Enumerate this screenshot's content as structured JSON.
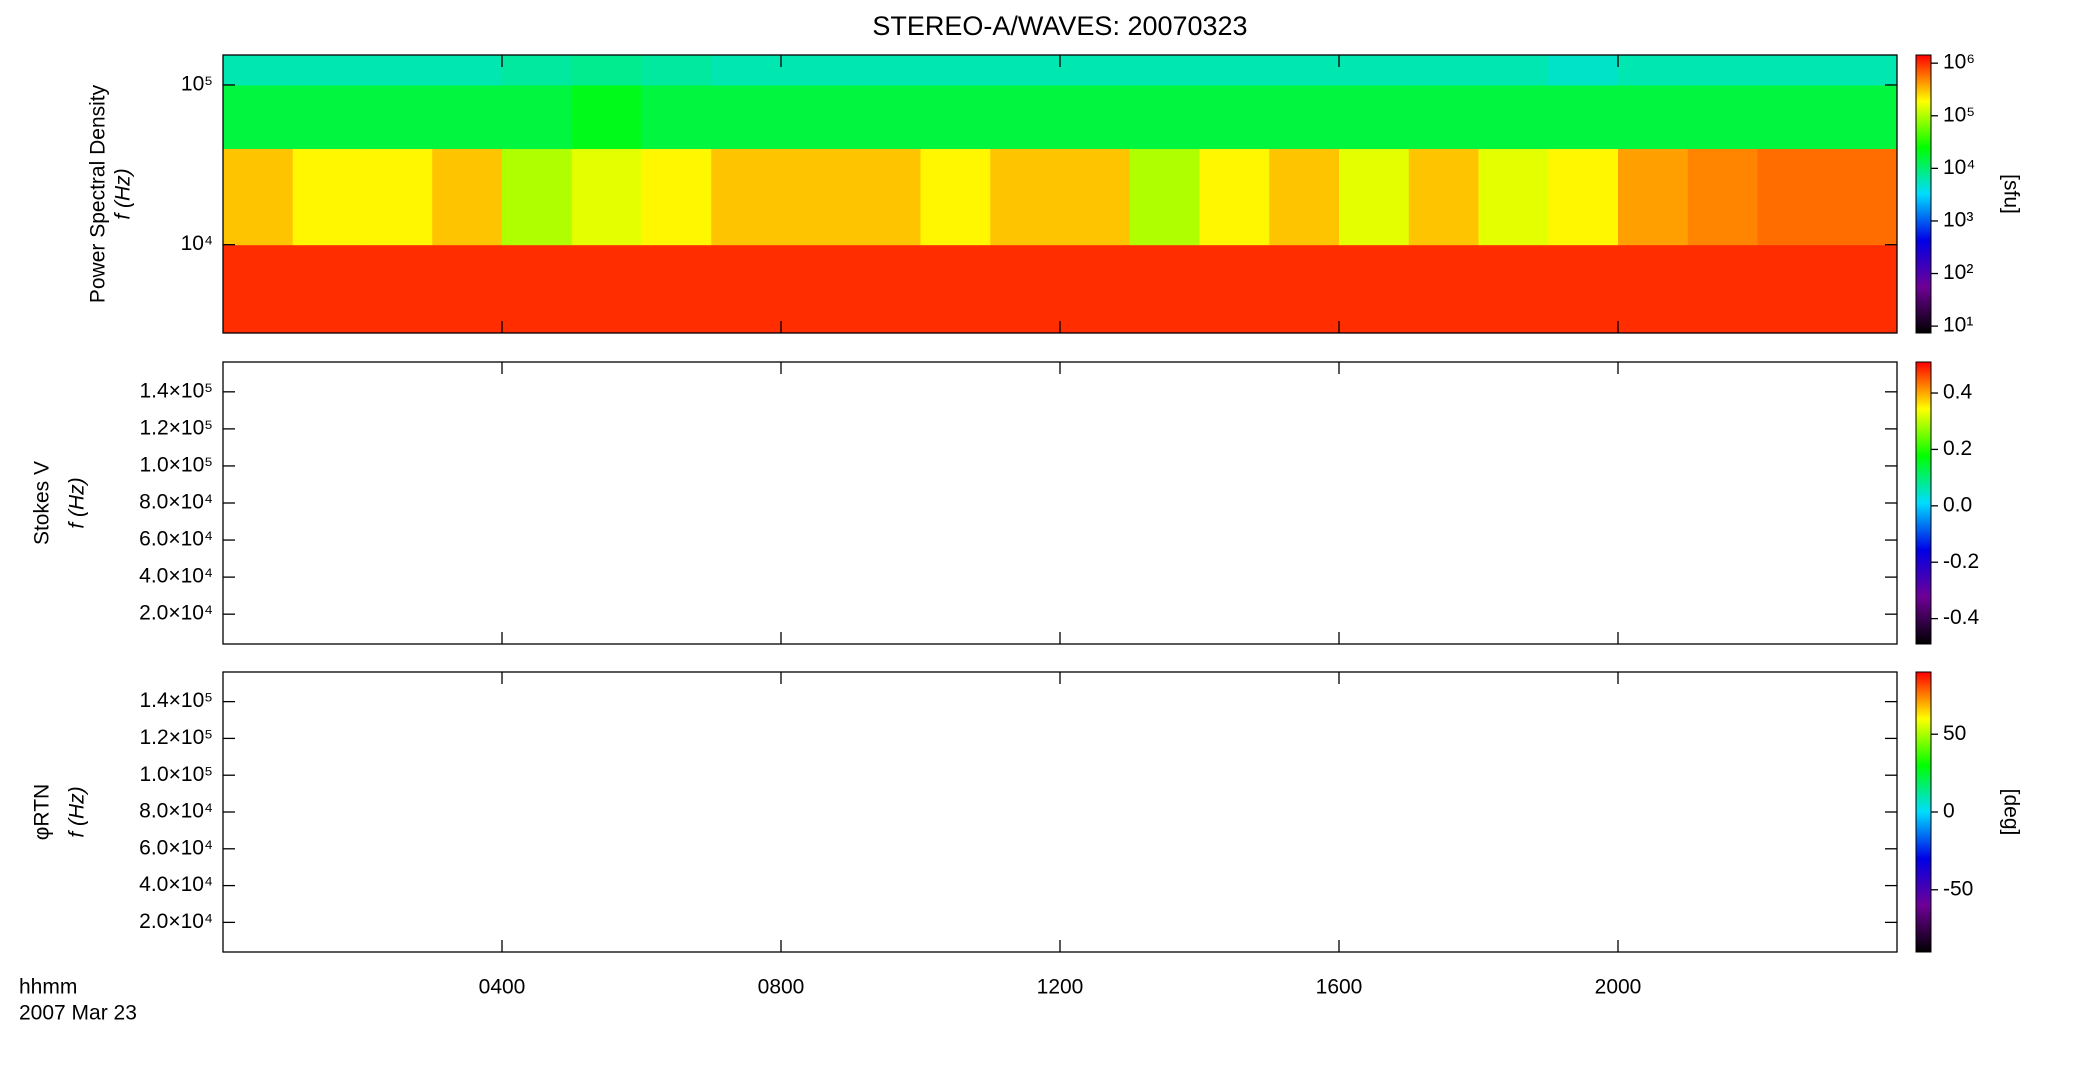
{
  "chart_data": [
    {
      "type": "heatmap",
      "title": "STEREO-A/WAVES: 20070323",
      "ylabel": "Power Spectral Density",
      "ylabel2": "f (Hz)",
      "ylog": true,
      "ylim": [
        2800,
        154000
      ],
      "yticks": [
        {
          "value": 10000,
          "label": "10⁴"
        },
        {
          "value": 100000,
          "label": "10⁵"
        }
      ],
      "xlim": [
        0,
        24
      ],
      "x_edges": [
        0,
        1,
        2,
        3,
        4,
        5,
        6,
        7,
        8,
        9,
        10,
        11,
        12,
        13,
        14,
        15,
        16,
        17,
        18,
        19,
        20,
        21,
        22,
        23,
        24
      ],
      "y_edges": [
        2800,
        10000,
        40000,
        100000,
        154000
      ],
      "z": [
        [
          1000000,
          1000000,
          1000000,
          1000000,
          1000000,
          1000000,
          1000000,
          1000000,
          1000000,
          1000000,
          1000000,
          1000000,
          1000000,
          1000000,
          1000000,
          1000000,
          1000000,
          1000000,
          1000000,
          1000000,
          1000000,
          1000000,
          1000000,
          1000000
        ],
        [
          300000,
          200000,
          200000,
          300000,
          100000,
          150000,
          200000,
          300000,
          300000,
          300000,
          200000,
          300000,
          300000,
          100000,
          200000,
          300000,
          150000,
          300000,
          150000,
          200000,
          400000,
          500000,
          600000,
          600000
        ],
        [
          15000,
          15000,
          15000,
          15000,
          15000,
          20000,
          15000,
          15000,
          15000,
          15000,
          15000,
          15000,
          15000,
          15000,
          15000,
          15000,
          15000,
          15000,
          15000,
          15000,
          15000,
          15000,
          15000,
          15000
        ],
        [
          6000,
          6000,
          6000,
          6000,
          7000,
          8000,
          7000,
          6000,
          6000,
          6000,
          6000,
          6000,
          6000,
          6000,
          6000,
          6000,
          6000,
          6000,
          6000,
          5000,
          6000,
          6000,
          6000,
          6000
        ]
      ],
      "colormap": [
        "#000000",
        "#6e0096",
        "#0000e6",
        "#00dcff",
        "#00ff00",
        "#ffff00",
        "#ff0000"
      ],
      "zlog": true,
      "zlim": [
        7.4,
        1430000
      ],
      "zticks": [
        {
          "value": 10,
          "label": "10¹"
        },
        {
          "value": 100,
          "label": "10²"
        },
        {
          "value": 1000,
          "label": "10³"
        },
        {
          "value": 10000,
          "label": "10⁴"
        },
        {
          "value": 100000,
          "label": "10⁵"
        },
        {
          "value": 1000000,
          "label": "10⁶"
        }
      ],
      "zlabel": "[sfu]"
    },
    {
      "type": "heatmap",
      "ylabel": "Stokes V",
      "ylabel2": "f (Hz)",
      "ylog": false,
      "ylim": [
        3900,
        156100
      ],
      "yticks": [
        {
          "value": 20000,
          "label": "2.0×10⁴"
        },
        {
          "value": 40000,
          "label": "4.0×10⁴"
        },
        {
          "value": 60000,
          "label": "6.0×10⁴"
        },
        {
          "value": 80000,
          "label": "8.0×10⁴"
        },
        {
          "value": 100000,
          "label": "1.0×10⁵"
        },
        {
          "value": 120000,
          "label": "1.2×10⁵"
        },
        {
          "value": 140000,
          "label": "1.4×10⁵"
        }
      ],
      "xlim": [
        0,
        24
      ],
      "colormap": [
        "#000000",
        "#6e0096",
        "#0000e6",
        "#00dcff",
        "#00ff00",
        "#ffff00",
        "#ff0000"
      ],
      "zlog": false,
      "zlim": [
        -0.49,
        0.51
      ],
      "zticks": [
        {
          "value": -0.4,
          "label": "-0.4"
        },
        {
          "value": -0.2,
          "label": "-0.2"
        },
        {
          "value": 0,
          "label": "0.0"
        },
        {
          "value": 0.2,
          "label": "0.2"
        },
        {
          "value": 0.4,
          "label": "0.4"
        }
      ]
    },
    {
      "type": "heatmap",
      "ylabel": "φRTN",
      "ylabel2": "f (Hz)",
      "ylog": false,
      "ylim": [
        3900,
        156100
      ],
      "yticks": [
        {
          "value": 20000,
          "label": "2.0×10⁴"
        },
        {
          "value": 40000,
          "label": "4.0×10⁴"
        },
        {
          "value": 60000,
          "label": "6.0×10⁴"
        },
        {
          "value": 80000,
          "label": "8.0×10⁴"
        },
        {
          "value": 100000,
          "label": "1.0×10⁵"
        },
        {
          "value": 120000,
          "label": "1.2×10⁵"
        },
        {
          "value": 140000,
          "label": "1.4×10⁵"
        }
      ],
      "xlim": [
        0,
        24
      ],
      "xticks": [
        {
          "value": 4,
          "label": "0400"
        },
        {
          "value": 8,
          "label": "0800"
        },
        {
          "value": 12,
          "label": "1200"
        },
        {
          "value": 16,
          "label": "1600"
        },
        {
          "value": 20,
          "label": "2000"
        }
      ],
      "xlabel": "hhmm",
      "date_label": "2007 Mar 23",
      "colormap": [
        "#000000",
        "#6e0096",
        "#0000e6",
        "#00dcff",
        "#00ff00",
        "#ffff00",
        "#ff0000"
      ],
      "zlog": false,
      "zlim": [
        -90,
        90
      ],
      "zticks": [
        {
          "value": -50,
          "label": "-50"
        },
        {
          "value": 0,
          "label": "0"
        },
        {
          "value": 50,
          "label": "50"
        }
      ],
      "zlabel": "[deg]"
    }
  ]
}
